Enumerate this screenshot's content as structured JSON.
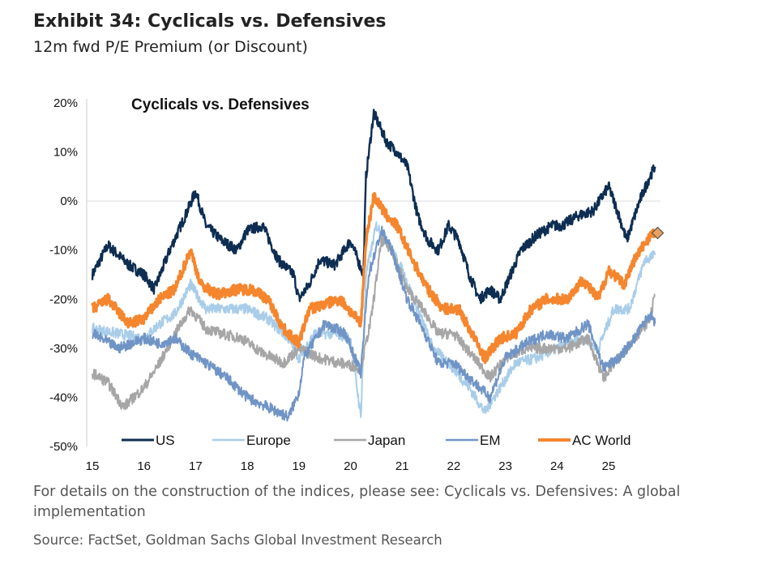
{
  "header": {
    "title": "Exhibit 34: Cyclicals vs. Defensives",
    "subtitle": "12m fwd P/E Premium (or Discount)"
  },
  "footer": {
    "note": "For details on the construction of the indices, please see: Cyclicals vs. Defensives: A global implementation",
    "source": "Source: FactSet, Goldman Sachs Global Investment Research"
  },
  "chart_data": {
    "type": "line",
    "title": "Cyclicals vs. Defensives",
    "xlabel": "",
    "ylabel": "",
    "xlim": [
      2015,
      2026
    ],
    "ylim": [
      -50,
      20
    ],
    "x_ticks": [
      15,
      16,
      17,
      18,
      19,
      20,
      21,
      22,
      23,
      24,
      25
    ],
    "y_ticks": [
      20,
      10,
      0,
      -10,
      -20,
      -30,
      -40,
      -50
    ],
    "y_tick_labels": [
      "20%",
      "10%",
      "0%",
      "-10%",
      "-20%",
      "-30%",
      "-40%",
      "-50%"
    ],
    "legend_placement": "bottom",
    "series": [
      {
        "name": "US",
        "color": "#0d2d52",
        "width": 2.4,
        "points": [
          [
            2015,
            -15
          ],
          [
            2015.3,
            -9
          ],
          [
            2015.7,
            -13
          ],
          [
            2016,
            -15
          ],
          [
            2016.2,
            -18
          ],
          [
            2016.5,
            -10
          ],
          [
            2016.8,
            -3
          ],
          [
            2017,
            2
          ],
          [
            2017.2,
            -5
          ],
          [
            2017.5,
            -8
          ],
          [
            2017.8,
            -10
          ],
          [
            2018,
            -6
          ],
          [
            2018.3,
            -5
          ],
          [
            2018.6,
            -12
          ],
          [
            2018.9,
            -15
          ],
          [
            2019,
            -20
          ],
          [
            2019.2,
            -17
          ],
          [
            2019.4,
            -12
          ],
          [
            2019.7,
            -13
          ],
          [
            2020,
            -8
          ],
          [
            2020.25,
            -15
          ],
          [
            2020.3,
            5
          ],
          [
            2020.45,
            18
          ],
          [
            2020.7,
            12
          ],
          [
            2020.9,
            10
          ],
          [
            2021.1,
            7
          ],
          [
            2021.3,
            -3
          ],
          [
            2021.5,
            -8
          ],
          [
            2021.7,
            -10
          ],
          [
            2021.9,
            -5
          ],
          [
            2022.1,
            -8
          ],
          [
            2022.3,
            -15
          ],
          [
            2022.5,
            -20
          ],
          [
            2022.7,
            -18
          ],
          [
            2022.9,
            -20
          ],
          [
            2023.1,
            -15
          ],
          [
            2023.3,
            -10
          ],
          [
            2023.6,
            -7
          ],
          [
            2023.9,
            -5
          ],
          [
            2024.1,
            -5
          ],
          [
            2024.4,
            -3
          ],
          [
            2024.7,
            -2
          ],
          [
            2025,
            3
          ],
          [
            2025.2,
            -3
          ],
          [
            2025.35,
            -8
          ],
          [
            2025.6,
            0
          ],
          [
            2025.8,
            5
          ],
          [
            2025.9,
            7
          ]
        ]
      },
      {
        "name": "Europe",
        "color": "#a9cde9",
        "width": 2,
        "points": [
          [
            2015,
            -26
          ],
          [
            2015.5,
            -27
          ],
          [
            2016,
            -28
          ],
          [
            2016.3,
            -25
          ],
          [
            2016.6,
            -23
          ],
          [
            2016.9,
            -17
          ],
          [
            2017.2,
            -22
          ],
          [
            2017.6,
            -22
          ],
          [
            2018,
            -22
          ],
          [
            2018.4,
            -24
          ],
          [
            2018.8,
            -28
          ],
          [
            2019,
            -32
          ],
          [
            2019.3,
            -27
          ],
          [
            2019.7,
            -27
          ],
          [
            2020,
            -28
          ],
          [
            2020.2,
            -44
          ],
          [
            2020.3,
            -15
          ],
          [
            2020.5,
            -5
          ],
          [
            2020.7,
            -8
          ],
          [
            2021,
            -14
          ],
          [
            2021.3,
            -22
          ],
          [
            2021.6,
            -30
          ],
          [
            2021.9,
            -33
          ],
          [
            2022.3,
            -38
          ],
          [
            2022.6,
            -43
          ],
          [
            2022.9,
            -38
          ],
          [
            2023.2,
            -33
          ],
          [
            2023.6,
            -32
          ],
          [
            2024,
            -30
          ],
          [
            2024.5,
            -28
          ],
          [
            2024.8,
            -30
          ],
          [
            2025.1,
            -22
          ],
          [
            2025.4,
            -22
          ],
          [
            2025.7,
            -12
          ],
          [
            2025.9,
            -11
          ]
        ]
      },
      {
        "name": "Japan",
        "color": "#a6a6a6",
        "width": 2,
        "points": [
          [
            2015,
            -35
          ],
          [
            2015.3,
            -37
          ],
          [
            2015.6,
            -42
          ],
          [
            2016,
            -38
          ],
          [
            2016.3,
            -33
          ],
          [
            2016.6,
            -27
          ],
          [
            2016.9,
            -22
          ],
          [
            2017.2,
            -26
          ],
          [
            2017.5,
            -27
          ],
          [
            2017.9,
            -28
          ],
          [
            2018.3,
            -31
          ],
          [
            2018.7,
            -33
          ],
          [
            2019,
            -30
          ],
          [
            2019.4,
            -32
          ],
          [
            2019.8,
            -33
          ],
          [
            2020.2,
            -34
          ],
          [
            2020.4,
            -24
          ],
          [
            2020.6,
            -8
          ],
          [
            2020.8,
            -10
          ],
          [
            2021.1,
            -18
          ],
          [
            2021.4,
            -22
          ],
          [
            2021.7,
            -27
          ],
          [
            2022,
            -27
          ],
          [
            2022.4,
            -32
          ],
          [
            2022.7,
            -36
          ],
          [
            2023,
            -32
          ],
          [
            2023.4,
            -30
          ],
          [
            2023.8,
            -30
          ],
          [
            2024.2,
            -30
          ],
          [
            2024.6,
            -28
          ],
          [
            2024.9,
            -36
          ],
          [
            2025.2,
            -32
          ],
          [
            2025.5,
            -28
          ],
          [
            2025.8,
            -24
          ],
          [
            2025.9,
            -19
          ]
        ]
      },
      {
        "name": "EM",
        "color": "#7094c6",
        "width": 2,
        "points": [
          [
            2015,
            -27
          ],
          [
            2015.5,
            -30
          ],
          [
            2016,
            -28
          ],
          [
            2016.3,
            -29
          ],
          [
            2016.6,
            -28
          ],
          [
            2016.9,
            -31
          ],
          [
            2017.2,
            -33
          ],
          [
            2017.6,
            -36
          ],
          [
            2018,
            -40
          ],
          [
            2018.4,
            -42
          ],
          [
            2018.8,
            -44
          ],
          [
            2019,
            -39
          ],
          [
            2019.1,
            -32
          ],
          [
            2019.5,
            -25
          ],
          [
            2019.9,
            -27
          ],
          [
            2020.2,
            -35
          ],
          [
            2020.35,
            -15
          ],
          [
            2020.6,
            -6
          ],
          [
            2020.8,
            -10
          ],
          [
            2021.1,
            -20
          ],
          [
            2021.4,
            -26
          ],
          [
            2021.7,
            -33
          ],
          [
            2022,
            -33
          ],
          [
            2022.4,
            -37
          ],
          [
            2022.7,
            -40
          ],
          [
            2023,
            -32
          ],
          [
            2023.4,
            -29
          ],
          [
            2023.8,
            -27
          ],
          [
            2024.2,
            -28
          ],
          [
            2024.6,
            -25
          ],
          [
            2024.9,
            -34
          ],
          [
            2025.2,
            -32
          ],
          [
            2025.5,
            -28
          ],
          [
            2025.8,
            -23
          ],
          [
            2025.9,
            -25
          ]
        ]
      },
      {
        "name": "AC World",
        "color": "#f5862e",
        "width": 3.4,
        "points": [
          [
            2015,
            -22
          ],
          [
            2015.3,
            -20
          ],
          [
            2015.7,
            -25
          ],
          [
            2016,
            -24
          ],
          [
            2016.3,
            -20
          ],
          [
            2016.6,
            -18
          ],
          [
            2016.9,
            -10
          ],
          [
            2017.1,
            -17
          ],
          [
            2017.4,
            -19
          ],
          [
            2017.8,
            -18
          ],
          [
            2018.1,
            -18
          ],
          [
            2018.4,
            -20
          ],
          [
            2018.7,
            -26
          ],
          [
            2019,
            -29
          ],
          [
            2019.2,
            -22
          ],
          [
            2019.5,
            -21
          ],
          [
            2019.8,
            -20
          ],
          [
            2020.2,
            -25
          ],
          [
            2020.3,
            -8
          ],
          [
            2020.45,
            1
          ],
          [
            2020.7,
            -3
          ],
          [
            2020.9,
            -5
          ],
          [
            2021.2,
            -12
          ],
          [
            2021.5,
            -18
          ],
          [
            2021.8,
            -22
          ],
          [
            2022.1,
            -22
          ],
          [
            2022.4,
            -28
          ],
          [
            2022.6,
            -32
          ],
          [
            2022.9,
            -28
          ],
          [
            2023.2,
            -27
          ],
          [
            2023.5,
            -22
          ],
          [
            2023.8,
            -20
          ],
          [
            2024.2,
            -20
          ],
          [
            2024.5,
            -16
          ],
          [
            2024.8,
            -20
          ],
          [
            2025,
            -14
          ],
          [
            2025.3,
            -17
          ],
          [
            2025.5,
            -12
          ],
          [
            2025.8,
            -7
          ],
          [
            2025.9,
            -6.5
          ]
        ]
      }
    ],
    "marker": {
      "series": "AC World",
      "x": 2025.95,
      "y": -6.5,
      "shape": "diamond",
      "color": "#8a6a4a"
    }
  }
}
